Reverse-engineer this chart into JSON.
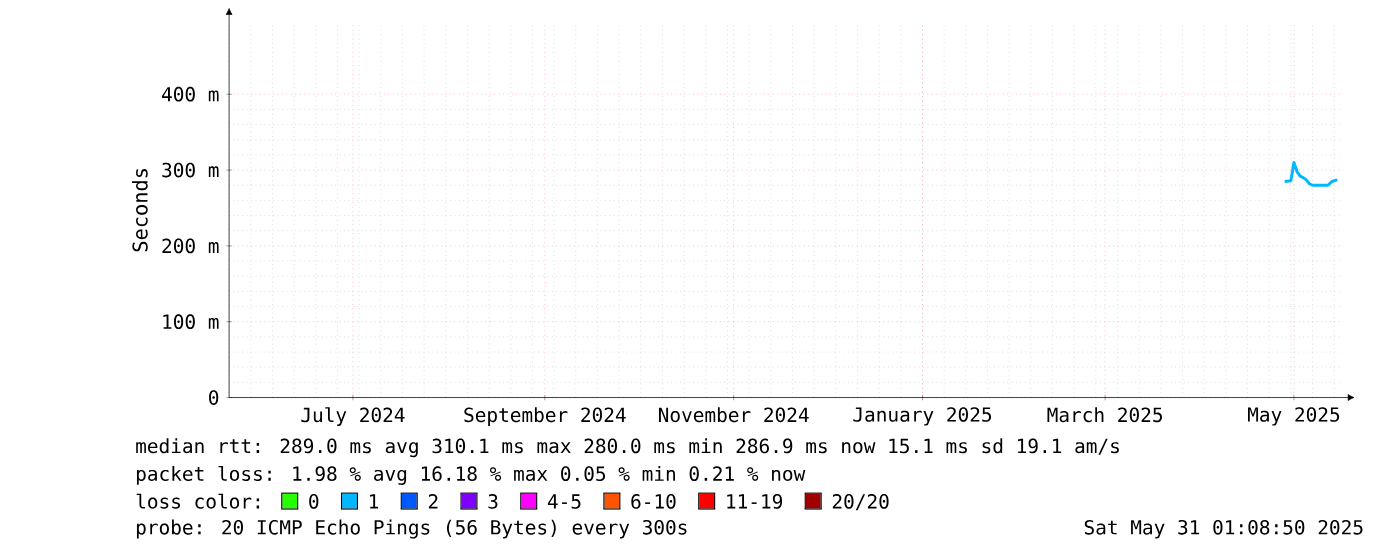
{
  "chart_data": {
    "type": "line",
    "ylabel": "Seconds",
    "xlim": [
      "2024-06-06",
      "2025-05-31"
    ],
    "xticks": [
      {
        "value": "2024-07-16",
        "label": "July 2024"
      },
      {
        "value": "2024-09-16",
        "label": "September 2024"
      },
      {
        "value": "2024-11-16",
        "label": "November 2024"
      },
      {
        "value": "2025-01-16",
        "label": "January 2025"
      },
      {
        "value": "2025-03-16",
        "label": "March 2025"
      },
      {
        "value": "2025-05-16",
        "label": "May 2025"
      }
    ],
    "ylim": [
      0,
      495
    ],
    "yticks": [
      {
        "value": 0,
        "label": "0"
      },
      {
        "value": 100,
        "label": "100 m"
      },
      {
        "value": 200,
        "label": "200 m"
      },
      {
        "value": 300,
        "label": "300 m"
      },
      {
        "value": 400,
        "label": "400 m"
      }
    ],
    "grid": true,
    "legend": "bottom",
    "legend_title": "loss color:",
    "x": [
      "2025-05-13",
      "2025-05-15",
      "2025-05-16",
      "2025-05-17",
      "2025-05-18",
      "2025-05-19",
      "2025-05-20",
      "2025-05-21",
      "2025-05-22",
      "2025-05-27",
      "2025-05-28",
      "2025-05-29",
      "2025-05-30"
    ],
    "series": [
      {
        "name": "0",
        "color": "#26ff00",
        "values": [
          null,
          null,
          null,
          null,
          null,
          null,
          null,
          null,
          null,
          null,
          null,
          null,
          null
        ]
      },
      {
        "name": "1",
        "color": "#00b8ff",
        "values": [
          285,
          286,
          310,
          298,
          292,
          290,
          287,
          282,
          280,
          280,
          284,
          286,
          287
        ]
      },
      {
        "name": "2",
        "color": "#0059ff",
        "values": [
          null,
          null,
          null,
          null,
          null,
          null,
          null,
          null,
          null,
          null,
          null,
          null,
          null
        ]
      },
      {
        "name": "3",
        "color": "#7e00ff",
        "values": [
          null,
          null,
          null,
          null,
          null,
          null,
          null,
          null,
          null,
          null,
          null,
          null,
          null
        ]
      },
      {
        "name": "4-5",
        "color": "#ff00ff",
        "values": [
          null,
          null,
          null,
          null,
          null,
          null,
          null,
          null,
          null,
          null,
          null,
          null,
          null
        ]
      },
      {
        "name": "6-10",
        "color": "#ff5500",
        "values": [
          null,
          null,
          null,
          null,
          null,
          null,
          null,
          null,
          null,
          null,
          null,
          null,
          null
        ]
      },
      {
        "name": "11-19",
        "color": "#ff0000",
        "values": [
          null,
          null,
          null,
          null,
          null,
          null,
          null,
          null,
          null,
          null,
          null,
          null,
          null
        ]
      },
      {
        "name": "20/20",
        "color": "#a10000",
        "values": [
          null,
          null,
          null,
          null,
          null,
          null,
          null,
          null,
          null,
          null,
          null,
          null,
          null
        ]
      }
    ],
    "annotations": [
      "median rtt: 289.0 ms avg 310.1 ms max 280.0 ms min 286.9 ms now 15.1 ms sd 19.1 am/s",
      "packet loss: 1.98 % avg 16.18 % max 0.05 % min 0.21 % now",
      "probe: 20 ICMP Echo Pings (56 Bytes) every 300s",
      "Sat May 31 01:08:50 2025"
    ]
  }
}
